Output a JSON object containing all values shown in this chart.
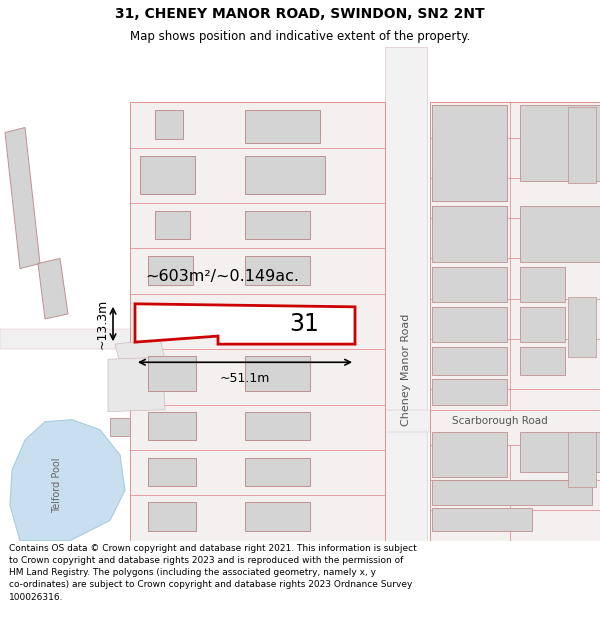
{
  "title": "31, CHENEY MANOR ROAD, SWINDON, SN2 2NT",
  "subtitle": "Map shows position and indicative extent of the property.",
  "footer": "Contains OS data © Crown copyright and database right 2021. This information is subject\nto Crown copyright and database rights 2023 and is reproduced with the permission of\nHM Land Registry. The polygons (including the associated geometry, namely x, y\nco-ordinates) are subject to Crown copyright and database rights 2023 Ordnance Survey\n100026316.",
  "map_bg": "#ececec",
  "road_fill": "#f7f7f7",
  "road_edge": "#d0b0b0",
  "building_fill": "#d4d4d4",
  "building_edge": "#c09090",
  "plot_fill": "#ffffff",
  "plot_edge": "#cc0000",
  "water_fill": "#c8dff0",
  "water_edge": "#aaccdd",
  "text_color": "#333333",
  "area_text": "~603m²/~0.149ac.",
  "property_number": "31",
  "width_label": "~51.1m",
  "height_label": "~13.3m",
  "cheney_manor_road_label": "Cheney Manor Road",
  "telford_pool_label": "Telford Pool",
  "scarborough_road_label": "Scarborough Road",
  "title_fontsize": 10,
  "subtitle_fontsize": 8.5,
  "footer_fontsize": 6.5
}
